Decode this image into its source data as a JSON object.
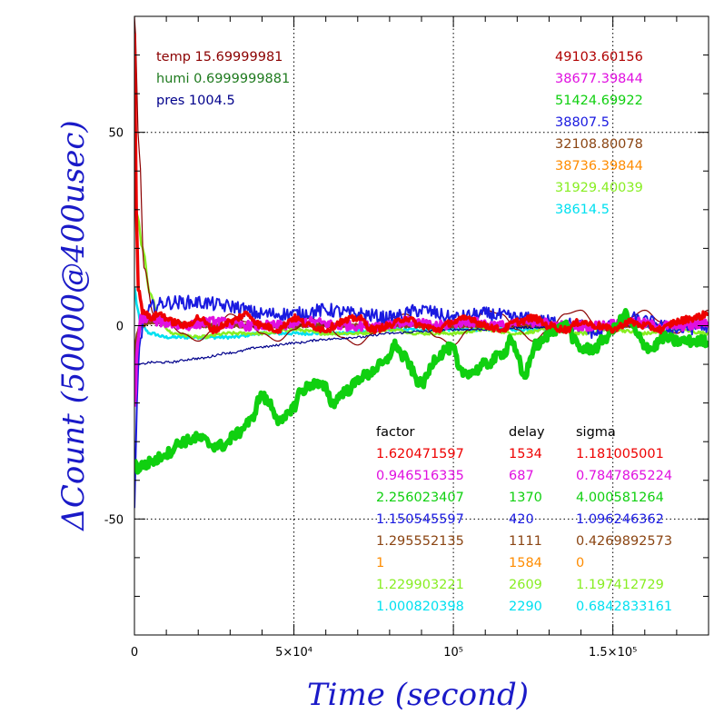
{
  "chart_data": {
    "type": "line",
    "xlabel": "Time (second)",
    "ylabel": "ΔCount (50000@400usec)",
    "xlim": [
      0,
      180000
    ],
    "ylim": [
      -80,
      80
    ],
    "x_ticks": [
      {
        "value": 0,
        "label": "0"
      },
      {
        "value": 50000,
        "label": "5×10⁴"
      },
      {
        "value": 100000,
        "label": "10⁵"
      },
      {
        "value": 150000,
        "label": "1.5×10⁵"
      }
    ],
    "y_ticks": [
      {
        "value": -50,
        "label": "-50"
      },
      {
        "value": 0,
        "label": "0"
      },
      {
        "value": 50,
        "label": "50"
      }
    ],
    "grid": true,
    "env_info": [
      {
        "text": "temp 15.69999981",
        "color": "#8b0000"
      },
      {
        "text": "humi 0.6999999881",
        "color": "#1e7a1e"
      },
      {
        "text": "pres 1004.5",
        "color": "#00008b"
      }
    ],
    "count_labels": [
      {
        "text": "49103.60156",
        "color": "#b00000"
      },
      {
        "text": "38677.39844",
        "color": "#e010e0"
      },
      {
        "text": "51424.69922",
        "color": "#10d010"
      },
      {
        "text": "38807.5",
        "color": "#1a1ae0"
      },
      {
        "text": "32108.80078",
        "color": "#8b4513"
      },
      {
        "text": "38736.39844",
        "color": "#ff8c00"
      },
      {
        "text": "31929.40039",
        "color": "#88ee22"
      },
      {
        "text": "38614.5",
        "color": "#00e0f0"
      }
    ],
    "param_headers": [
      "factor",
      "delay",
      "sigma"
    ],
    "param_rows": [
      {
        "factor": "1.620471597",
        "delay": "1534",
        "sigma": "1.181005001",
        "color": "#ee0000"
      },
      {
        "factor": "0.946516335",
        "delay": "687",
        "sigma": "0.7847865224",
        "color": "#e010e0"
      },
      {
        "factor": "2.256023407",
        "delay": "1370",
        "sigma": "4.000581264",
        "color": "#10d010"
      },
      {
        "factor": "1.150545597",
        "delay": "420",
        "sigma": "1.096246362",
        "color": "#1a1ae0"
      },
      {
        "factor": "1.295552135",
        "delay": "1111",
        "sigma": "0.4269892573",
        "color": "#8b4513"
      },
      {
        "factor": "1",
        "delay": "1584",
        "sigma": "0",
        "color": "#ff8c00"
      },
      {
        "factor": "1.229903221",
        "delay": "2609",
        "sigma": "1.197412729",
        "color": "#88ee22"
      },
      {
        "factor": "1.000820398",
        "delay": "2290",
        "sigma": "0.6842833161",
        "color": "#00e0f0"
      }
    ],
    "series": [
      {
        "color": "#00e0f0",
        "width": 2.5,
        "noise": 0.4,
        "x": [
          0,
          1000,
          2000,
          5000,
          10000,
          20000,
          30000,
          40000,
          60000,
          80000,
          100000,
          120000,
          140000,
          160000,
          180000
        ],
        "y": [
          10,
          4,
          0,
          -2,
          -3,
          -3,
          -3,
          -2,
          -2,
          -1,
          -1,
          -1,
          0,
          0,
          0
        ]
      },
      {
        "color": "#88ee22",
        "width": 2.5,
        "noise": 0.4,
        "x": [
          0,
          1000,
          2500,
          5000,
          8000,
          12000,
          20000,
          30000,
          40000,
          50000,
          60000,
          70000,
          80000,
          90000,
          100000,
          110000,
          120000,
          130000,
          140000,
          150000,
          160000,
          170000,
          180000
        ],
        "y": [
          32,
          28,
          20,
          8,
          1,
          -2,
          -3,
          -2,
          -2,
          -1,
          -2,
          -2,
          -1,
          -2,
          -2,
          -1,
          -2,
          -1,
          -2,
          -1,
          -2,
          -1,
          -2
        ]
      },
      {
        "color": "#8b4513",
        "width": 4,
        "noise": 0.3,
        "x": [
          0,
          1000,
          2000,
          5000,
          10000,
          20000,
          40000,
          60000,
          80000,
          100000,
          120000,
          140000,
          160000,
          180000
        ],
        "y": [
          -10,
          -2,
          0,
          1,
          1,
          0,
          0,
          0,
          0,
          0,
          0,
          0,
          0,
          0
        ]
      },
      {
        "color": "#8b0000",
        "width": 1.2,
        "noise": 0,
        "x": [
          0,
          1500,
          3000,
          6000,
          10000,
          15000,
          20000,
          25000,
          30000,
          35000,
          40000,
          45000,
          50000,
          55000,
          60000,
          65000,
          70000,
          75000,
          80000,
          85000,
          90000,
          95000,
          100000,
          105000,
          110000,
          115000,
          120000,
          125000,
          130000,
          135000,
          140000,
          145000,
          150000,
          155000,
          160000,
          165000,
          170000,
          175000,
          180000
        ],
        "y": [
          80,
          45,
          15,
          3,
          1,
          -2,
          -4,
          -1,
          3,
          1,
          -2,
          -4,
          -1,
          2,
          0,
          -3,
          -5,
          -2,
          2,
          3,
          0,
          -3,
          -5,
          -1,
          4,
          3,
          -1,
          -4,
          -1,
          3,
          4,
          0,
          -2,
          2,
          4,
          1,
          -2,
          1,
          4
        ]
      },
      {
        "color": "#00008b",
        "width": 1.2,
        "noise": 0.3,
        "x": [
          0,
          2000,
          5000,
          10000,
          20000,
          30000,
          40000,
          50000,
          60000,
          70000,
          80000,
          90000,
          100000,
          110000,
          120000,
          130000,
          140000,
          150000,
          160000,
          170000,
          180000
        ],
        "y": [
          -10,
          -10,
          -9.5,
          -9.5,
          -8.5,
          -7,
          -5.5,
          -4.5,
          -3.5,
          -3,
          -2,
          -1.5,
          -1,
          -1,
          -0.5,
          -0.5,
          0,
          0,
          0,
          0,
          0
        ]
      },
      {
        "color": "#1a1ae0",
        "width": 2,
        "noise": 1.8,
        "x": [
          0,
          800,
          1500,
          3000,
          6000,
          10000,
          20000,
          30000,
          40000,
          50000,
          60000,
          70000,
          80000,
          90000,
          100000,
          110000,
          120000,
          130000,
          140000,
          145000,
          150000,
          155000,
          160000,
          170000,
          180000
        ],
        "y": [
          -48,
          -20,
          -5,
          2,
          5,
          6,
          6,
          5,
          3,
          3,
          4,
          3,
          2,
          4,
          2,
          3,
          2,
          1,
          0,
          -2,
          0,
          2,
          1,
          -1,
          0
        ]
      },
      {
        "color": "#e010e0",
        "width": 3.5,
        "noise": 1.2,
        "x": [
          0,
          1000,
          2000,
          4000,
          8000,
          15000,
          25000,
          35000,
          45000,
          55000,
          65000,
          75000,
          85000,
          95000,
          105000,
          115000,
          125000,
          135000,
          145000,
          155000,
          165000,
          175000,
          180000
        ],
        "y": [
          -22,
          -5,
          2,
          2,
          1,
          0,
          1,
          0,
          0,
          1,
          0,
          0,
          1,
          0,
          1,
          0,
          1,
          0,
          0,
          1,
          0,
          0,
          1
        ]
      },
      {
        "color": "#10d010",
        "width": 5.5,
        "noise": 1.3,
        "x": [
          0,
          1000,
          3000,
          6000,
          10000,
          15000,
          20000,
          25000,
          28000,
          32000,
          36000,
          40000,
          42000,
          46000,
          50000,
          52000,
          56000,
          60000,
          62000,
          66000,
          72000,
          78000,
          82000,
          84000,
          90000,
          95000,
          98000,
          100000,
          102000,
          106000,
          110000,
          116000,
          118000,
          120000,
          122000,
          126000,
          132000,
          136000,
          138000,
          140000,
          144000,
          148000,
          150000,
          152000,
          154000,
          156000,
          158000,
          160000,
          162000,
          166000,
          170000,
          175000,
          180000
        ],
        "y": [
          -35,
          -37,
          -36,
          -35,
          -33,
          -30,
          -29,
          -31,
          -31,
          -28,
          -25,
          -18,
          -20,
          -25,
          -21,
          -17,
          -15,
          -16,
          -20,
          -17,
          -13,
          -10,
          -5,
          -8,
          -15,
          -8,
          -6,
          -6,
          -12,
          -12,
          -10,
          -7,
          -3,
          -8,
          -13,
          -5,
          -1,
          0,
          -4,
          -6,
          -6,
          -3,
          -1,
          1,
          3,
          0,
          -3,
          -5,
          -6,
          -3,
          -4,
          -4,
          -4
        ]
      },
      {
        "color": "#ee0000",
        "width": 3.5,
        "noise": 0.9,
        "x": [
          0,
          600,
          1200,
          2500,
          5000,
          8000,
          12000,
          16000,
          20000,
          25000,
          30000,
          35000,
          40000,
          45000,
          50000,
          55000,
          60000,
          65000,
          70000,
          75000,
          80000,
          85000,
          90000,
          95000,
          100000,
          105000,
          110000,
          115000,
          120000,
          125000,
          130000,
          135000,
          140000,
          145000,
          150000,
          155000,
          160000,
          165000,
          170000,
          175000,
          180000
        ],
        "y": [
          75,
          30,
          10,
          4,
          2,
          3,
          1,
          0,
          2,
          -1,
          1,
          3,
          0,
          -1,
          2,
          0,
          -1,
          1,
          2,
          -1,
          0,
          2,
          0,
          -1,
          1,
          2,
          0,
          -1,
          1,
          2,
          0,
          -1,
          1,
          0,
          -1,
          1,
          0,
          -1,
          1,
          2,
          3
        ]
      }
    ]
  }
}
